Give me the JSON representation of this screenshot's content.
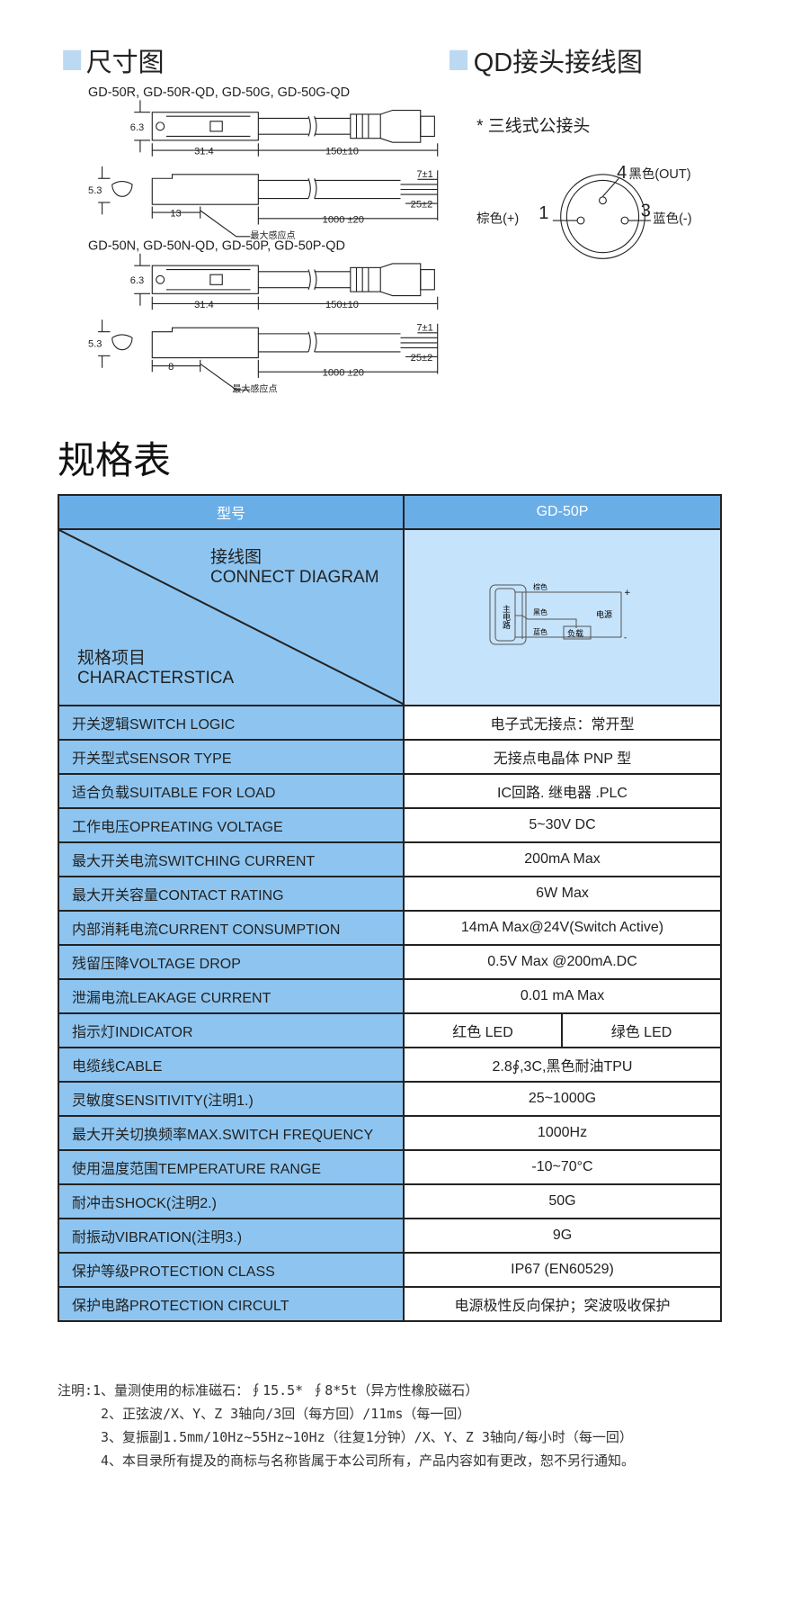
{
  "dimension_section": {
    "title": "尺寸图",
    "group1_models": "GD-50R, GD-50R-QD, GD-50G, GD-50G-QD",
    "group2_models": "GD-50N, GD-50N-QD, GD-50P, GD-50P-QD",
    "dim_height_top": "6.3",
    "dim_body_length": "31.4",
    "dim_qd_cable": "150±10",
    "dim_height_side": "5.3",
    "dim_strip": "7±1",
    "dim_wire": "25±2",
    "dim_sense_1": "13",
    "dim_sense_2": "8",
    "dim_cable": "1000 ±20",
    "sense_point_label": "最大感应点"
  },
  "qd_section": {
    "title": "QD接头接线图",
    "subtitle": "* 三线式公接头",
    "pin4": "4",
    "pin4_label": "黑色(OUT)",
    "pin1": "1",
    "pin1_label": "棕色(+)",
    "pin3": "3",
    "pin3_label": "蓝色(-)"
  },
  "spec_title": "规格表",
  "table": {
    "header_left": "型号",
    "header_right": "GD-50P",
    "diagram_label_cn": "接线图",
    "diagram_label_en": "CONNECT DIAGRAM",
    "item_label_cn": "规格项目",
    "item_label_en": "CHARACTERSTICA",
    "circuit": {
      "main_circuit": "主电路",
      "brown": "棕色",
      "black": "黑色",
      "blue": "蓝色",
      "load": "负载",
      "power": "电源",
      "plus": "+",
      "minus": "-"
    },
    "rows": [
      {
        "label": "开关逻辑SWITCH LOGIC",
        "value": "电子式无接点：常开型"
      },
      {
        "label": "开关型式SENSOR TYPE",
        "value": "无接点电晶体 PNP 型"
      },
      {
        "label": "适合负载SUITABLE FOR LOAD",
        "value": "IC回路. 继电器 .PLC"
      },
      {
        "label": "工作电压OPREATING VOLTAGE",
        "value": "5~30V DC"
      },
      {
        "label": "最大开关电流SWITCHING CURRENT",
        "value": "200mA Max"
      },
      {
        "label": "最大开关容量CONTACT RATING",
        "value": "6W Max"
      },
      {
        "label": "内部消耗电流CURRENT CONSUMPTION",
        "value": "14mA Max@24V(Switch Active)"
      },
      {
        "label": "残留压降VOLTAGE DROP",
        "value": "0.5V Max @200mA.DC"
      },
      {
        "label": "泄漏电流LEAKAGE CURRENT",
        "value": "0.01 mA Max"
      },
      {
        "label": "指示灯INDICATOR",
        "value": "红色 LED",
        "value2": "绿色 LED"
      },
      {
        "label": "电缆线CABLE",
        "value": "2.8∮,3C,黑色耐油TPU"
      },
      {
        "label": "灵敏度SENSITIVITY(注明1.)",
        "value": "25~1000G"
      },
      {
        "label": "最大开关切换频率MAX.SWITCH FREQUENCY",
        "value": "1000Hz"
      },
      {
        "label": "使用温度范围TEMPERATURE RANGE",
        "value": "-10~70°C"
      },
      {
        "label": "耐冲击SHOCK(注明2.)",
        "value": "50G"
      },
      {
        "label": "耐振动VIBRATION(注明3.)",
        "value": "9G"
      },
      {
        "label": "保护等级PROTECTION CLASS",
        "value": "IP67 (EN60529)"
      },
      {
        "label": "保护电路PROTECTION CIRCULT",
        "value": "电源极性反向保护；突波吸收保护"
      }
    ]
  },
  "notes": [
    "注明:1、量测使用的标准磁石：∮15.5* ∮8*5t（异方性橡胶磁石）",
    "2、正弦波/X、Y、Z 3轴向/3回（每方回）/11ms（每一回）",
    "3、复振副1.5mm/10Hz~55Hz~10Hz（往复1分钟）/X、Y、Z 3轴向/每小时（每一回）",
    "4、本目录所有提及的商标与名称皆属于本公司所有，产品内容如有更改，恕不另行通知。"
  ],
  "colors": {
    "header_blue": "#6aaee8",
    "label_blue": "#8ec5f0",
    "diagram_blue": "#c5e3fa",
    "section_marker": "#bcd9f2"
  }
}
